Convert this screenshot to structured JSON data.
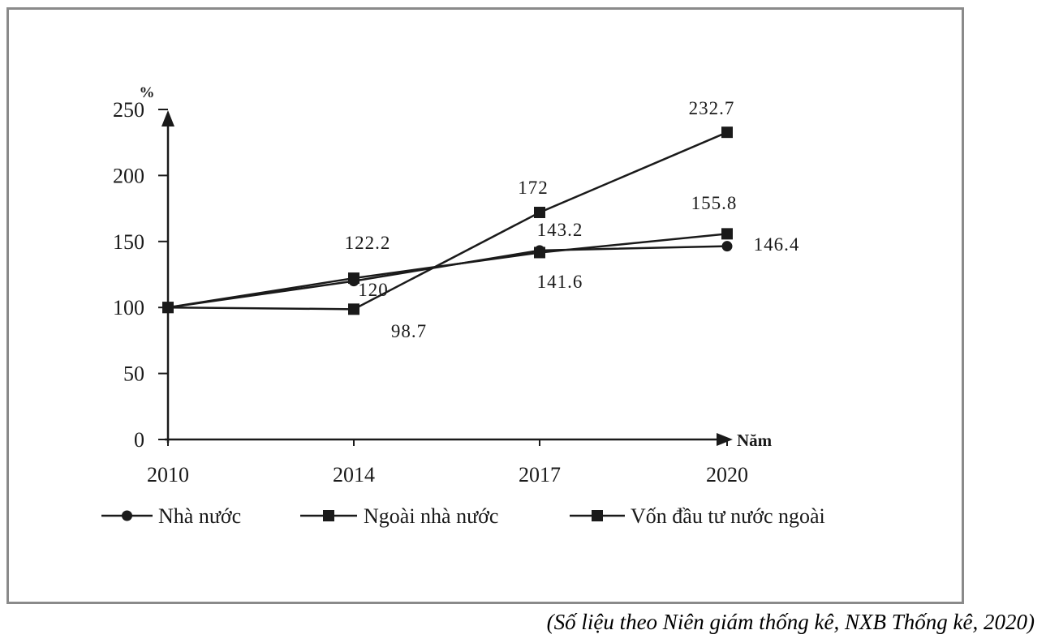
{
  "chart_data": {
    "type": "line",
    "x": [
      "2010",
      "2014",
      "2017",
      "2020"
    ],
    "y_unit_label": "%",
    "x_unit_label": "Năm",
    "ylim": [
      0,
      250
    ],
    "yticks": [
      0,
      50,
      100,
      150,
      200,
      250
    ],
    "grid": false,
    "legend_position": "bottom",
    "series": [
      {
        "name": "Nhà nước",
        "marker": "circle",
        "values": [
          100,
          120,
          143.2,
          146.4
        ],
        "labels": [
          "",
          "120",
          "143.2",
          "146.4"
        ]
      },
      {
        "name": "Ngoài nhà nước",
        "marker": "square",
        "values": [
          100,
          122.2,
          141.6,
          155.8
        ],
        "labels": [
          "",
          "122.2",
          "141.6",
          "155.8"
        ]
      },
      {
        "name": "Vốn đầu tư nước ngoài",
        "marker": "square",
        "values": [
          100,
          98.7,
          172,
          232.7
        ],
        "labels": [
          "",
          "98.7",
          "172",
          "232.7"
        ]
      }
    ]
  },
  "source_note": "(Số liệu theo Niên giám thống kê, NXB Thống kê, 2020)",
  "colors": {
    "line": "#1a1a1a",
    "frame_border": "#8a8a8a",
    "background": "#ffffff"
  }
}
